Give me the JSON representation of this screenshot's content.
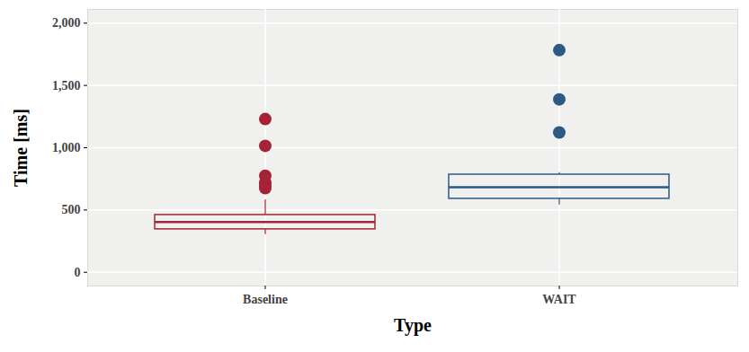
{
  "chart_data": {
    "type": "box",
    "x_label": "Type",
    "y_label": "Time [ms]",
    "categories": [
      "Baseline",
      "WAIT"
    ],
    "colors": [
      "#a52336",
      "#2c5a85"
    ],
    "boxes": [
      {
        "whisker_low": 302,
        "q1": 345,
        "median": 403,
        "q3": 460,
        "whisker_high": 582,
        "outliers": [
          1230,
          1015,
          775,
          720,
          695,
          675
        ]
      },
      {
        "whisker_low": 540,
        "q1": 590,
        "median": 683,
        "q3": 784,
        "whisker_high": 800,
        "outliers": [
          1783,
          1388,
          1122
        ]
      }
    ],
    "ylim": [
      -110,
      2110
    ],
    "yticks": [
      0,
      500,
      {
        "value": 1000,
        "label": "1,000"
      },
      {
        "value": 1500,
        "label": "1,500"
      },
      {
        "value": 2000,
        "label": "2,000"
      }
    ],
    "grid": true
  }
}
